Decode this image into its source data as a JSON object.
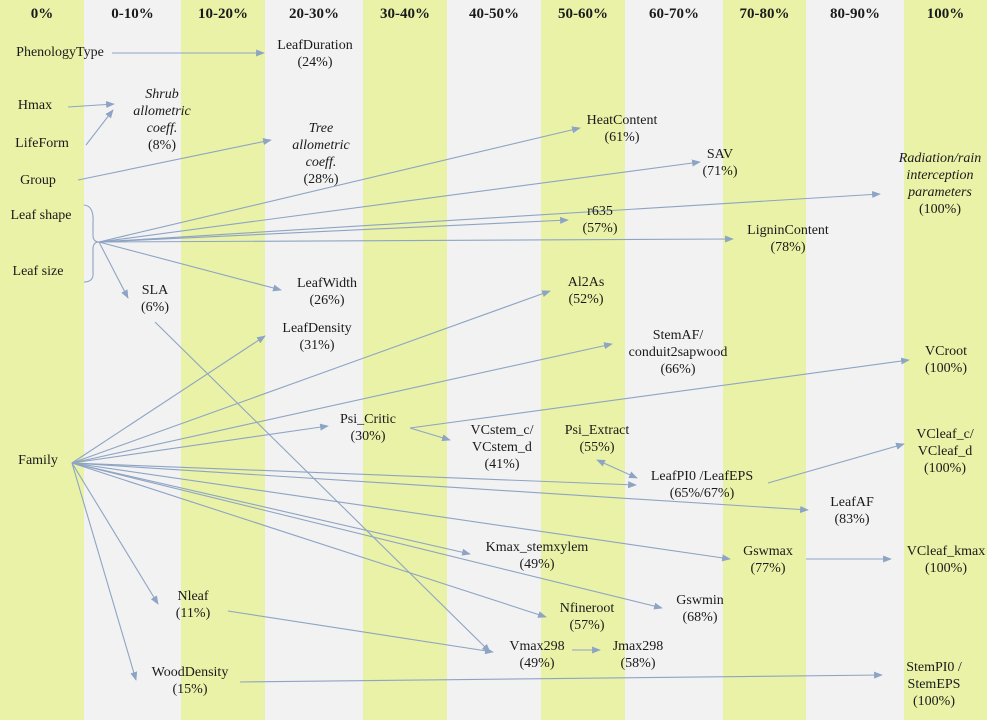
{
  "columns": [
    "0%",
    "0-10%",
    "10-20%",
    "20-30%",
    "30-40%",
    "40-50%",
    "50-60%",
    "60-70%",
    "70-80%",
    "80-90%",
    "100%"
  ],
  "colors": {
    "green_band": "#e9f2a6",
    "grey_band": "#f2f2f2",
    "arrow": "#8ea4c4",
    "text": "#1a1a1a"
  },
  "nodes": {
    "phenology_type": {
      "name": "PhenologyType"
    },
    "hmax": {
      "name": "Hmax"
    },
    "lifeform": {
      "name": "LifeForm"
    },
    "group": {
      "name": "Group"
    },
    "leaf_shape": {
      "name": "Leaf shape"
    },
    "leaf_size": {
      "name": "Leaf size"
    },
    "family": {
      "name": "Family"
    },
    "shrub_allometric": {
      "name": "Shrub\nallometric\ncoeff.",
      "pct": "(8%)"
    },
    "leaf_duration": {
      "name": "LeafDuration",
      "pct": "(24%)"
    },
    "tree_allometric": {
      "name": "Tree\nallometric\ncoeff.",
      "pct": "(28%)"
    },
    "heat_content": {
      "name": "HeatContent",
      "pct": "(61%)"
    },
    "sav": {
      "name": "SAV",
      "pct": "(71%)"
    },
    "radiation": {
      "name": "Radiation/rain\ninterception\nparameters",
      "pct": "(100%)"
    },
    "r635": {
      "name": "r635",
      "pct": "(57%)"
    },
    "lignin": {
      "name": "LigninContent",
      "pct": "(78%)"
    },
    "sla": {
      "name": "SLA",
      "pct": "(6%)"
    },
    "leaf_width": {
      "name": "LeafWidth",
      "pct": "(26%)"
    },
    "al2as": {
      "name": "Al2As",
      "pct": "(52%)"
    },
    "leaf_density": {
      "name": "LeafDensity",
      "pct": "(31%)"
    },
    "stem_af": {
      "name": "StemAF/\nconduit2sapwood",
      "pct": "(66%)"
    },
    "vcroot": {
      "name": "VCroot",
      "pct": "(100%)"
    },
    "psi_critic": {
      "name": "Psi_Critic",
      "pct": "(30%)"
    },
    "vcstem": {
      "name": "VCstem_c/\nVCstem_d",
      "pct": "(41%)"
    },
    "psi_extract": {
      "name": "Psi_Extract",
      "pct": "(55%)"
    },
    "vcleaf_cd": {
      "name": "VCleaf_c/\nVCleaf_d",
      "pct": "(100%)"
    },
    "leaf_pi0": {
      "name": "LeafPI0 /LeafEPS",
      "pct": "(65%/67%)"
    },
    "leaf_af": {
      "name": "LeafAF",
      "pct": "(83%)"
    },
    "kmax": {
      "name": "Kmax_stemxylem",
      "pct": "(49%)"
    },
    "gswmax": {
      "name": "Gswmax",
      "pct": "(77%)"
    },
    "vcleaf_kmax": {
      "name": "VCleaf_kmax",
      "pct": "(100%)"
    },
    "nleaf": {
      "name": "Nleaf",
      "pct": "(11%)"
    },
    "nfineroot": {
      "name": "Nfineroot",
      "pct": "(57%)"
    },
    "gswmin": {
      "name": "Gswmin",
      "pct": "(68%)"
    },
    "vmax298": {
      "name": "Vmax298",
      "pct": "(49%)"
    },
    "jmax298": {
      "name": "Jmax298",
      "pct": "(58%)"
    },
    "wood_density": {
      "name": "WoodDensity",
      "pct": "(15%)"
    },
    "stem_pi0": {
      "name": "StemPI0 /\nStemEPS",
      "pct": "(100%)"
    }
  }
}
